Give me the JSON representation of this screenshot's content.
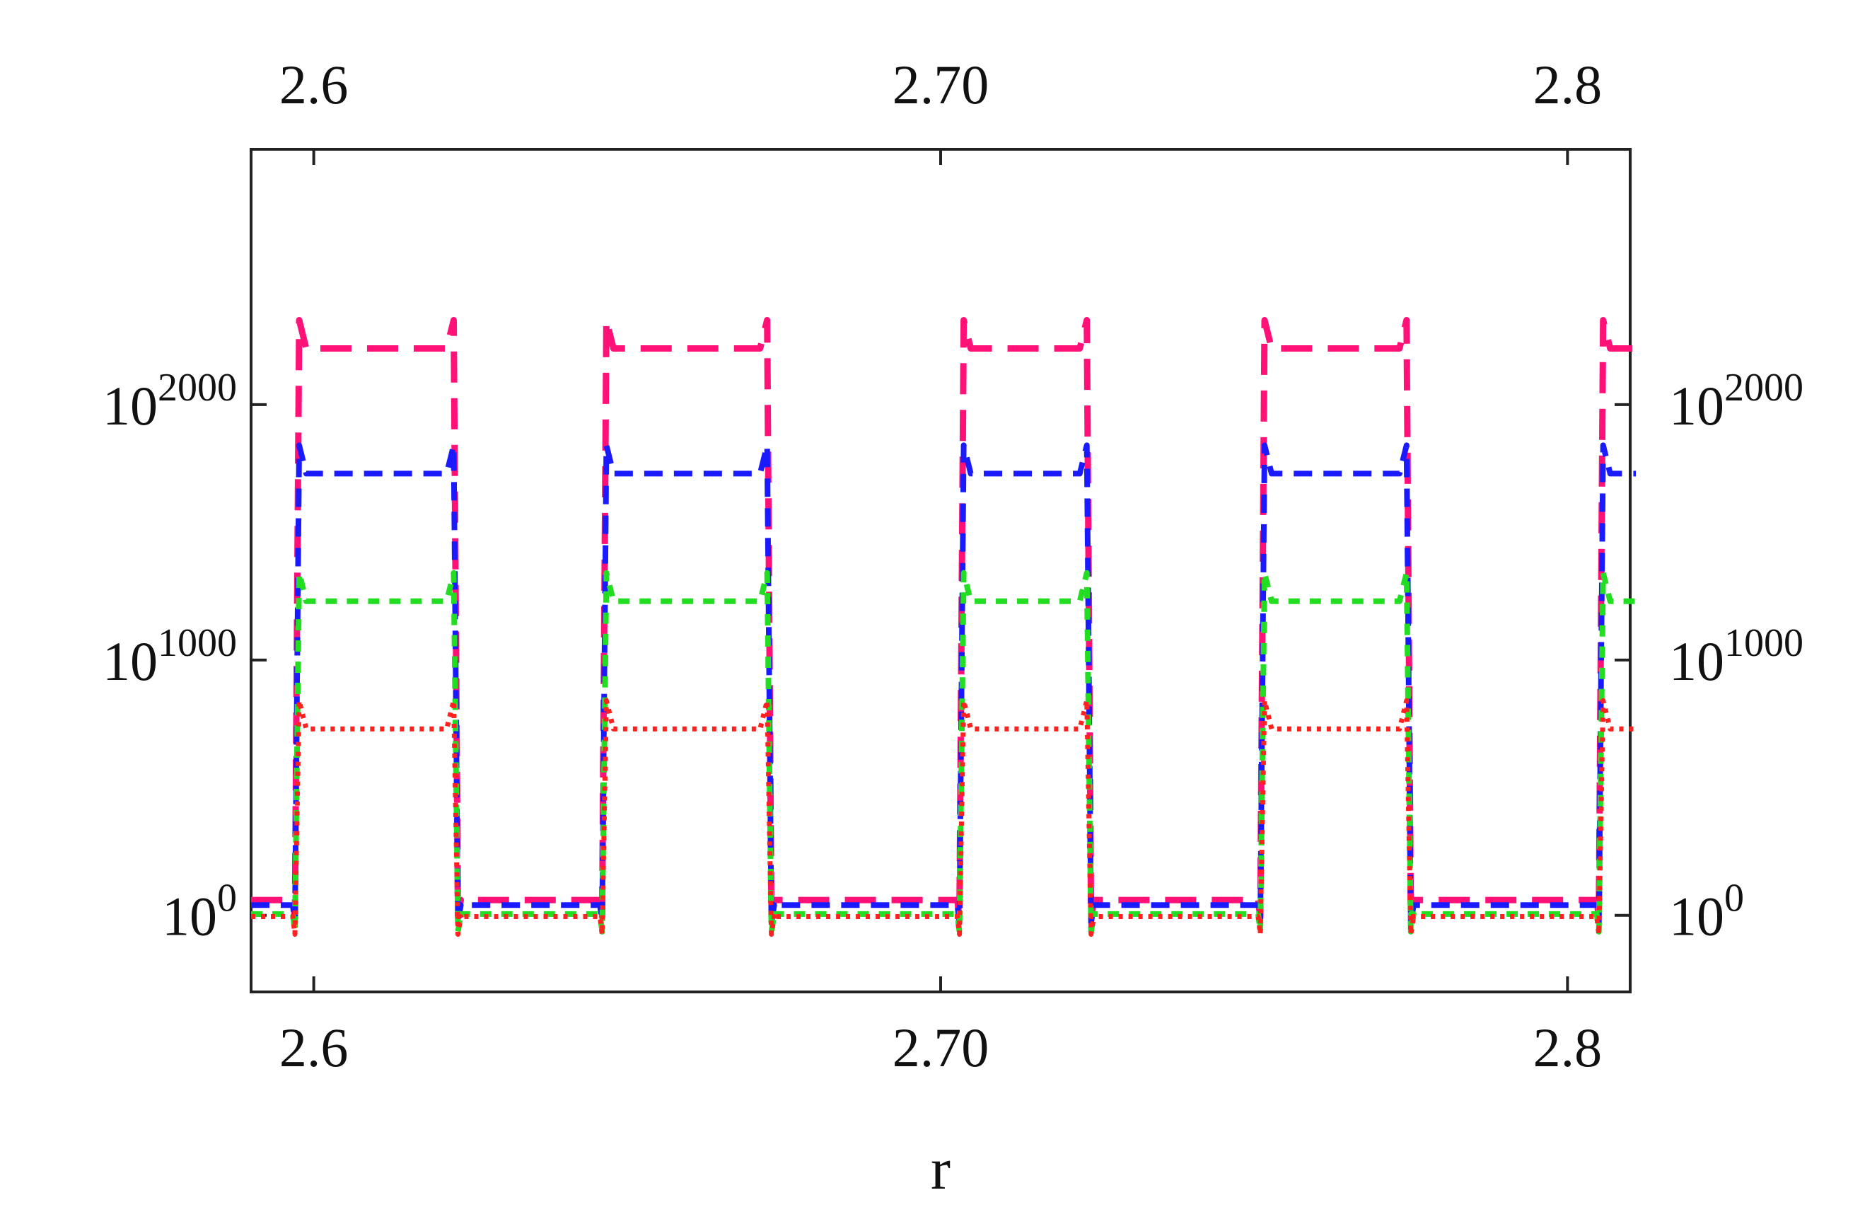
{
  "chart_data": {
    "type": "line",
    "title": "",
    "xlabel": "r",
    "ylabel": "",
    "xlim": [
      2.59,
      2.81
    ],
    "ylim_log10": [
      -300,
      3000
    ],
    "y_scale": "log",
    "grid": false,
    "legend": "none",
    "x_ticks_bottom": [
      {
        "value": 2.6,
        "label": "2.6"
      },
      {
        "value": 2.7,
        "label": "2.70"
      },
      {
        "value": 2.8,
        "label": "2.8"
      }
    ],
    "x_ticks_top": [
      {
        "value": 2.6,
        "label": "2.6"
      },
      {
        "value": 2.7,
        "label": "2.70"
      },
      {
        "value": 2.8,
        "label": "2.8"
      }
    ],
    "y_ticks": [
      {
        "value_log10": 0,
        "base": "10",
        "exp": "0"
      },
      {
        "value_log10": 1000,
        "base": "10",
        "exp": "1000"
      },
      {
        "value_log10": 2000,
        "base": "10",
        "exp": "2000"
      }
    ],
    "high_intervals": [
      [
        2.597,
        2.623
      ],
      [
        2.646,
        2.673
      ],
      [
        2.703,
        2.724
      ],
      [
        2.751,
        2.775
      ],
      [
        2.805,
        2.81
      ]
    ],
    "series": [
      {
        "color": "#ff1177",
        "dash": "long",
        "high_log10": 2220,
        "low_log10": 60
      },
      {
        "color": "#1a1aff",
        "dash": "medium",
        "high_log10": 1730,
        "low_log10": 40
      },
      {
        "color": "#22dd22",
        "dash": "short",
        "high_log10": 1230,
        "low_log10": 5
      },
      {
        "color": "#ff2020",
        "dash": "dotted",
        "high_log10": 730,
        "low_log10": -5
      }
    ]
  }
}
